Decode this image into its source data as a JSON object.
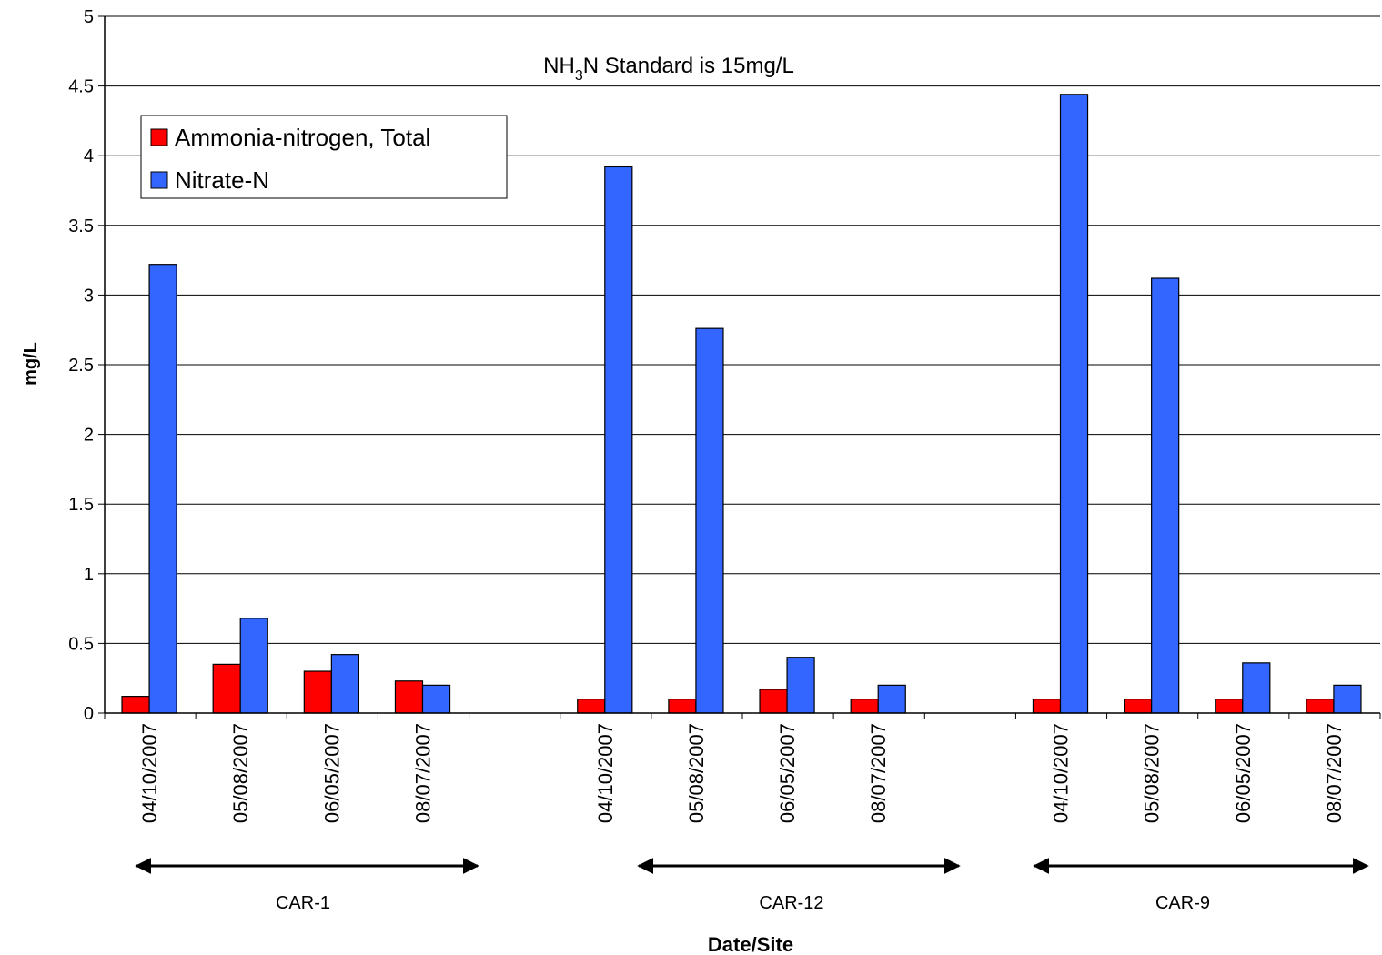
{
  "chart_data": {
    "type": "bar",
    "annotation": {
      "main": "NH",
      "sub": "3",
      "rest": "N Standard is 15mg/L"
    },
    "y_label": "mg/L",
    "x_label": "Date/Site",
    "categories": [
      "04/10/2007",
      "05/08/2007",
      "06/05/2007",
      "08/07/2007",
      null,
      "04/10/2007",
      "05/08/2007",
      "06/05/2007",
      "08/07/2007",
      null,
      "04/10/2007",
      "05/08/2007",
      "06/05/2007",
      "08/07/2007"
    ],
    "group_labels": [
      "CAR-1",
      "CAR-12",
      "CAR-9"
    ],
    "series": [
      {
        "name": "Ammonia-nitrogen, Total",
        "color": "#ff0000",
        "values": [
          0.12,
          0.35,
          0.3,
          0.23,
          null,
          0.1,
          0.1,
          0.17,
          0.1,
          null,
          0.1,
          0.1,
          0.1,
          0.1
        ]
      },
      {
        "name": "Nitrate-N",
        "color": "#3366ff",
        "values": [
          3.22,
          0.68,
          0.42,
          0.2,
          null,
          3.92,
          2.76,
          0.4,
          0.2,
          null,
          4.44,
          3.12,
          0.36,
          0.2
        ]
      }
    ],
    "ylim": [
      0,
      5
    ],
    "yticks": [
      0,
      0.5,
      1,
      1.5,
      2,
      2.5,
      3,
      3.5,
      4,
      4.5,
      5
    ],
    "grid": true,
    "legend": "upper left"
  }
}
